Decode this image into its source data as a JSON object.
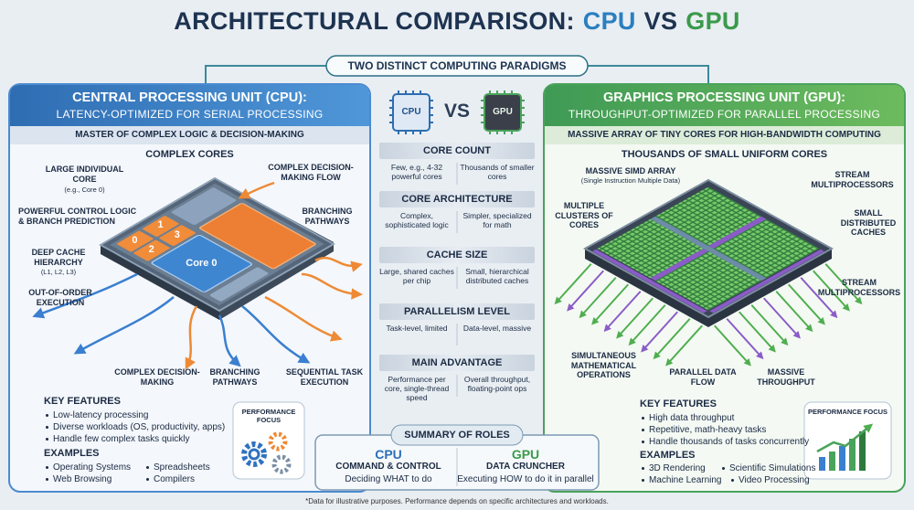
{
  "header": {
    "title": "ARCHITECTURAL COMPARISON:",
    "title_cpu": "CPU",
    "title_vs": "VS",
    "title_gpu": "GPU",
    "subtitle": "TWO DISTINCT COMPUTING PARADIGMS"
  },
  "cpu": {
    "title": "CENTRAL PROCESSING UNIT (CPU):",
    "subtitle": "LATENCY-OPTIMIZED FOR SERIAL PROCESSING",
    "tagline": "MASTER OF COMPLEX LOGIC & DECISION-MAKING",
    "diagram_title": "COMPLEX CORES",
    "chip": {
      "main_core": "Core 0",
      "cores": [
        "0",
        "1",
        "2",
        "3"
      ]
    },
    "labels": [
      "LARGE INDIVIDUAL CORE",
      "(e.g., Core 0)",
      "COMPLEX DECISION-MAKING FLOW",
      "POWERFUL CONTROL LOGIC & BRANCH PREDICTION",
      "BRANCHING PATHWAYS",
      "DEEP CACHE HIERARCHY",
      "(L1, L2, L3)",
      "OUT-OF-ORDER EXECUTION",
      "COMPLEX DECISION-MAKING",
      "BRANCHING PATHWAYS",
      "SEQUENTIAL TASK EXECUTION"
    ],
    "key_features": {
      "heading": "KEY FEATURES",
      "items": [
        "Low-latency processing",
        "Diverse workloads (OS, productivity, apps)",
        "Handle few complex tasks quickly"
      ]
    },
    "examples": {
      "heading": "EXAMPLES",
      "items": [
        "Operating Systems",
        "Spreadsheets",
        "Web Browsing",
        "Compilers"
      ]
    },
    "performance_focus": "PERFORMANCE FOCUS"
  },
  "comparison": {
    "chips": [
      "CPU",
      "GPU"
    ],
    "vs": "VS",
    "rows": [
      {
        "heading": "CORE COUNT",
        "cpu": "Few, e.g., 4-32 powerful cores",
        "gpu": "Thousands of smaller cores"
      },
      {
        "heading": "CORE ARCHITECTURE",
        "cpu": "Complex, sophisticated logic",
        "gpu": "Simpler, specialized for math"
      },
      {
        "heading": "CACHE SIZE",
        "cpu": "Large, shared caches per chip",
        "gpu": "Small, hierarchical distributed caches"
      },
      {
        "heading": "PARALLELISM LEVEL",
        "cpu": "Task-level, limited",
        "gpu": "Data-level, massive"
      },
      {
        "heading": "MAIN ADVANTAGE",
        "cpu": "Performance per core, single-thread speed",
        "gpu": "Overall throughput, floating-point ops"
      }
    ]
  },
  "summary": {
    "heading": "SUMMARY OF ROLES",
    "cpu": {
      "name": "CPU",
      "role": "COMMAND & CONTROL",
      "description": "Deciding WHAT to do"
    },
    "gpu": {
      "name": "GPU",
      "role": "DATA CRUNCHER",
      "description": "Executing HOW to do it in parallel"
    }
  },
  "gpu": {
    "title": "GRAPHICS PROCESSING UNIT (GPU):",
    "subtitle": "THROUGHPUT-OPTIMIZED FOR PARALLEL PROCESSING",
    "tagline": "MASSIVE ARRAY OF TINY CORES FOR HIGH-BANDWIDTH COMPUTING",
    "diagram_title": "THOUSANDS OF SMALL UNIFORM CORES",
    "labels": [
      "MASSIVE SIMD ARRAY",
      "(Single Instruction Multiple Data)",
      "STREAM MULTIPROCESSORS",
      "MULTIPLE CLUSTERS OF CORES",
      "SMALL DISTRIBUTED CACHES",
      "STREAM MULTIPROCESSORS",
      "SIMULTANEOUS MATHEMATICAL OPERATIONS",
      "PARALLEL DATA FLOW",
      "MASSIVE THROUGHPUT"
    ],
    "key_features": {
      "heading": "KEY FEATURES",
      "items": [
        "High data throughput",
        "Repetitive, math-heavy tasks",
        "Handle thousands of tasks concurrently"
      ]
    },
    "examples": {
      "heading": "EXAMPLES",
      "items": [
        "3D Rendering",
        "Scientific Simulations",
        "Machine Learning",
        "Video Processing"
      ]
    },
    "performance_focus": "PERFORMANCE FOCUS"
  },
  "footnote": "*Data for illustrative purposes. Performance depends on specific architectures and workloads."
}
